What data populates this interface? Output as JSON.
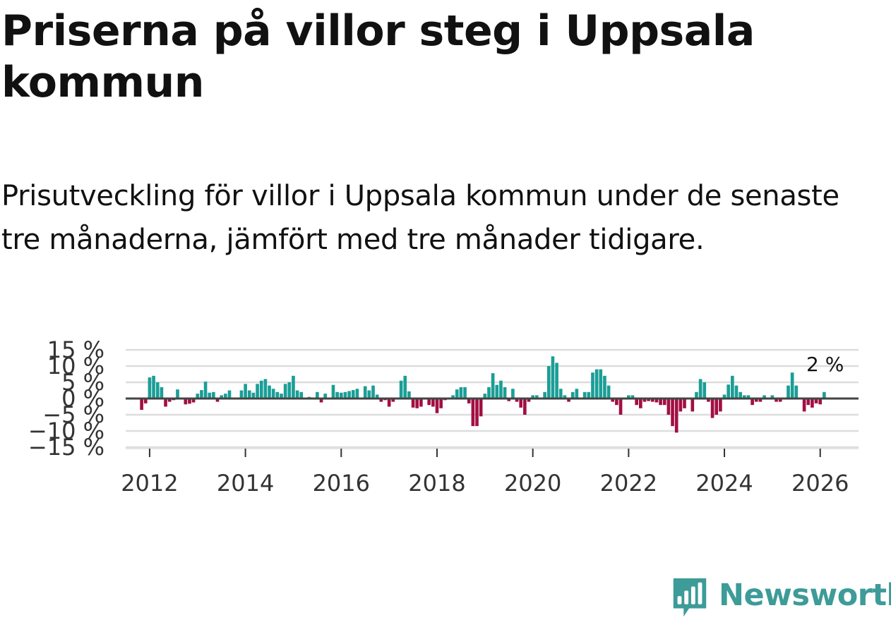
{
  "title": "Priserna på villor steg i Uppsala kommun",
  "subtitle": "Prisutveckling för villor i Uppsala kommun under de senaste tre månaderna, jämfört med tre månader tidigare.",
  "brand": {
    "name": "Newsworthy",
    "icon": "newsworthy-logo-icon",
    "color": "#3d9b98"
  },
  "chart_data": {
    "type": "bar",
    "title": "Priserna på villor steg i Uppsala kommun",
    "xlabel": "",
    "ylabel": "",
    "x_start": {
      "year": 2011,
      "month": 11
    },
    "xlim": [
      2011.5,
      2026.8
    ],
    "ylim": [
      -15,
      15
    ],
    "yticks": [
      15,
      10,
      5,
      0,
      -5,
      -10,
      -15
    ],
    "ytick_labels": [
      "15 %",
      "10 %",
      "5 %",
      "0 %",
      "−5 %",
      "−10 %",
      "−15 %"
    ],
    "xticks": [
      2012,
      2014,
      2016,
      2018,
      2020,
      2022,
      2024,
      2026
    ],
    "xtick_labels": [
      "2012",
      "2014",
      "2016",
      "2018",
      "2020",
      "2022",
      "2024",
      "2026"
    ],
    "positive_color": "#1a9e96",
    "negative_color": "#a10f43",
    "grid": true,
    "last_value_label": "2 %",
    "values": [
      -3.5,
      -1.5,
      6.5,
      7,
      5,
      3.5,
      -2.5,
      -1,
      -0.5,
      2.8,
      0.3,
      -1.8,
      -1.6,
      -1.2,
      1.5,
      2.6,
      5.2,
      1.8,
      2,
      -1,
      1,
      1.5,
      2.5,
      0.3,
      0.2,
      2.5,
      4.5,
      2.5,
      1.8,
      4.5,
      5.5,
      6,
      4,
      3,
      2,
      1.5,
      4.5,
      5,
      7,
      2.5,
      2,
      -0.2,
      0.5,
      0.2,
      2,
      -1.2,
      1.5,
      0.3,
      4.2,
      2,
      1.8,
      2,
      2.3,
      2.6,
      3,
      0.2,
      3.8,
      2.5,
      4,
      1.2,
      -1,
      -0.5,
      -2.5,
      -1,
      -0.3,
      5.5,
      7,
      2.2,
      -2.8,
      -3,
      -2.5,
      -0.3,
      -2,
      -2.5,
      -4.5,
      -3,
      -0.5,
      0.3,
      1,
      2.8,
      3.5,
      3.5,
      -1.5,
      -8.5,
      -8.5,
      -5.5,
      1.5,
      3.5,
      7.8,
      4.2,
      5.5,
      3.5,
      -0.8,
      3,
      -1,
      -2.8,
      -5,
      -1,
      1,
      1,
      0.2,
      2,
      10,
      13,
      11,
      3,
      1,
      -1,
      2,
      3,
      0.3,
      2,
      2,
      8,
      9,
      9,
      7,
      4,
      -1,
      -2,
      -5,
      0.3,
      1,
      1,
      -2,
      -3,
      -1,
      -0.8,
      -1,
      -1.2,
      -2,
      -2,
      -5,
      -8.5,
      -10.5,
      -4,
      -3,
      -0.3,
      -4,
      2,
      6,
      5,
      -1,
      -6,
      -5,
      -4,
      1.2,
      4.3,
      7,
      4,
      2,
      1,
      1,
      -2,
      -1,
      -1,
      1,
      0.2,
      1,
      -1,
      -1,
      -0.3,
      4,
      8,
      4,
      0.2,
      -4,
      -2,
      -2.8,
      -1.5,
      -1.8,
      2
    ]
  }
}
